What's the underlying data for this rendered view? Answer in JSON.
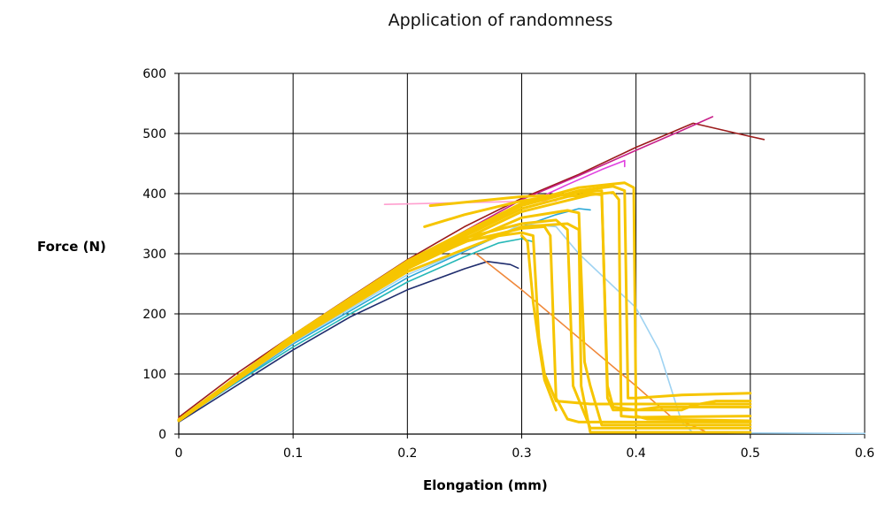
{
  "chart_data": {
    "type": "line",
    "title": "Application of randomness",
    "xlabel": "Elongation (mm)",
    "ylabel": "Force (N)",
    "xlim": [
      0,
      0.6
    ],
    "ylim": [
      0,
      600
    ],
    "x_ticks": [
      "0",
      "0.1",
      "0.2",
      "0.3",
      "0.4",
      "0.5",
      "0.6"
    ],
    "y_ticks": [
      "0",
      "100",
      "200",
      "300",
      "400",
      "500",
      "600"
    ],
    "grid": true,
    "legend": "none",
    "series": [
      {
        "color": "#9b1b1b",
        "points": [
          [
            0,
            28
          ],
          [
            0.05,
            100
          ],
          [
            0.1,
            165
          ],
          [
            0.15,
            228
          ],
          [
            0.2,
            290
          ],
          [
            0.25,
            345
          ],
          [
            0.3,
            392
          ],
          [
            0.35,
            432
          ],
          [
            0.4,
            477
          ],
          [
            0.45,
            517
          ],
          [
            0.5,
            495
          ],
          [
            0.512,
            490
          ]
        ]
      },
      {
        "color": "#c8208a",
        "points": [
          [
            0,
            25
          ],
          [
            0.1,
            160
          ],
          [
            0.2,
            285
          ],
          [
            0.3,
            390
          ],
          [
            0.35,
            430
          ],
          [
            0.4,
            472
          ],
          [
            0.44,
            505
          ],
          [
            0.467,
            528
          ]
        ]
      },
      {
        "color": "#e040e0",
        "points": [
          [
            0,
            22
          ],
          [
            0.1,
            155
          ],
          [
            0.2,
            278
          ],
          [
            0.3,
            380
          ],
          [
            0.34,
            415
          ],
          [
            0.37,
            440
          ],
          [
            0.39,
            455
          ],
          [
            0.39,
            445
          ]
        ]
      },
      {
        "color": "#ff9fcf",
        "points": [
          [
            0.18,
            382
          ],
          [
            0.25,
            385
          ],
          [
            0.3,
            387
          ],
          [
            0.33,
            388
          ]
        ]
      },
      {
        "color": "#1f2d6e",
        "points": [
          [
            0,
            20
          ],
          [
            0.05,
            80
          ],
          [
            0.1,
            140
          ],
          [
            0.15,
            195
          ],
          [
            0.2,
            240
          ],
          [
            0.25,
            275
          ],
          [
            0.27,
            287
          ],
          [
            0.29,
            282
          ],
          [
            0.297,
            276
          ]
        ]
      },
      {
        "color": "#25b7b7",
        "points": [
          [
            0,
            22
          ],
          [
            0.05,
            85
          ],
          [
            0.1,
            145
          ],
          [
            0.15,
            200
          ],
          [
            0.2,
            253
          ],
          [
            0.25,
            295
          ],
          [
            0.28,
            318
          ],
          [
            0.3,
            325
          ],
          [
            0.31,
            320
          ]
        ]
      },
      {
        "color": "#2aa7d6",
        "points": [
          [
            0,
            22
          ],
          [
            0.1,
            150
          ],
          [
            0.2,
            260
          ],
          [
            0.28,
            330
          ],
          [
            0.3,
            345
          ],
          [
            0.33,
            365
          ],
          [
            0.35,
            375
          ],
          [
            0.36,
            373
          ]
        ]
      },
      {
        "color": "#9fd3f2",
        "points": [
          [
            0,
            23
          ],
          [
            0.1,
            152
          ],
          [
            0.2,
            265
          ],
          [
            0.28,
            330
          ],
          [
            0.3,
            350
          ],
          [
            0.33,
            345
          ],
          [
            0.35,
            300
          ],
          [
            0.4,
            210
          ],
          [
            0.42,
            140
          ],
          [
            0.44,
            20
          ],
          [
            0.45,
            2
          ],
          [
            0.6,
            1
          ]
        ]
      },
      {
        "color": "#f0883a",
        "points": [
          [
            0.26,
            300
          ],
          [
            0.3,
            240
          ],
          [
            0.35,
            160
          ],
          [
            0.4,
            80
          ],
          [
            0.43,
            30
          ],
          [
            0.46,
            5
          ]
        ]
      },
      {
        "color": "#f6c500",
        "points": [
          [
            0,
            22
          ],
          [
            0.1,
            158
          ],
          [
            0.2,
            275
          ],
          [
            0.25,
            320
          ],
          [
            0.3,
            342
          ],
          [
            0.32,
            345
          ],
          [
            0.325,
            330
          ],
          [
            0.33,
            60
          ],
          [
            0.34,
            25
          ],
          [
            0.35,
            20
          ],
          [
            0.5,
            20
          ]
        ]
      },
      {
        "color": "#f6c500",
        "points": [
          [
            0,
            23
          ],
          [
            0.1,
            160
          ],
          [
            0.2,
            280
          ],
          [
            0.25,
            326
          ],
          [
            0.3,
            350
          ],
          [
            0.33,
            356
          ],
          [
            0.34,
            340
          ],
          [
            0.345,
            80
          ],
          [
            0.36,
            10
          ],
          [
            0.5,
            10
          ]
        ]
      },
      {
        "color": "#f6c500",
        "points": [
          [
            0,
            24
          ],
          [
            0.1,
            162
          ],
          [
            0.2,
            284
          ],
          [
            0.3,
            375
          ],
          [
            0.34,
            395
          ],
          [
            0.36,
            400
          ],
          [
            0.37,
            398
          ],
          [
            0.375,
            80
          ],
          [
            0.38,
            45
          ],
          [
            0.4,
            40
          ],
          [
            0.42,
            45
          ],
          [
            0.5,
            45
          ]
        ]
      },
      {
        "color": "#f6c500",
        "points": [
          [
            0,
            24
          ],
          [
            0.1,
            163
          ],
          [
            0.2,
            286
          ],
          [
            0.3,
            380
          ],
          [
            0.35,
            405
          ],
          [
            0.38,
            412
          ],
          [
            0.39,
            405
          ],
          [
            0.393,
            60
          ],
          [
            0.4,
            60
          ],
          [
            0.44,
            65
          ],
          [
            0.5,
            68
          ]
        ]
      },
      {
        "color": "#f6c500",
        "points": [
          [
            0,
            24
          ],
          [
            0.1,
            164
          ],
          [
            0.2,
            288
          ],
          [
            0.3,
            384
          ],
          [
            0.35,
            410
          ],
          [
            0.39,
            418
          ],
          [
            0.398,
            410
          ],
          [
            0.4,
            30
          ],
          [
            0.41,
            25
          ],
          [
            0.5,
            22
          ]
        ]
      },
      {
        "color": "#f6c500",
        "points": [
          [
            0.215,
            345
          ],
          [
            0.25,
            365
          ],
          [
            0.3,
            388
          ],
          [
            0.35,
            402
          ],
          [
            0.37,
            405
          ],
          [
            0.375,
            60
          ],
          [
            0.38,
            40
          ],
          [
            0.44,
            40
          ],
          [
            0.45,
            48
          ],
          [
            0.47,
            55
          ],
          [
            0.5,
            55
          ]
        ]
      },
      {
        "color": "#f6c500",
        "points": [
          [
            0,
            23
          ],
          [
            0.1,
            157
          ],
          [
            0.2,
            276
          ],
          [
            0.25,
            322
          ],
          [
            0.3,
            335
          ],
          [
            0.31,
            330
          ],
          [
            0.315,
            160
          ],
          [
            0.32,
            100
          ],
          [
            0.33,
            55
          ],
          [
            0.36,
            50
          ],
          [
            0.5,
            50
          ]
        ]
      },
      {
        "color": "#f6c500",
        "points": [
          [
            0,
            23
          ],
          [
            0.1,
            158
          ],
          [
            0.2,
            278
          ],
          [
            0.3,
            360
          ],
          [
            0.34,
            372
          ],
          [
            0.35,
            368
          ],
          [
            0.355,
            120
          ],
          [
            0.36,
            80
          ],
          [
            0.37,
            15
          ],
          [
            0.5,
            15
          ]
        ]
      },
      {
        "color": "#f6c500",
        "points": [
          [
            0,
            22
          ],
          [
            0.1,
            155
          ],
          [
            0.2,
            270
          ],
          [
            0.3,
            345
          ],
          [
            0.34,
            350
          ],
          [
            0.35,
            340
          ],
          [
            0.352,
            80
          ],
          [
            0.36,
            3
          ],
          [
            0.5,
            3
          ]
        ]
      },
      {
        "color": "#f6c500",
        "points": [
          [
            0,
            23
          ],
          [
            0.1,
            159
          ],
          [
            0.2,
            279
          ],
          [
            0.3,
            370
          ],
          [
            0.36,
            398
          ],
          [
            0.38,
            402
          ],
          [
            0.385,
            390
          ],
          [
            0.387,
            30
          ],
          [
            0.4,
            28
          ],
          [
            0.5,
            30
          ]
        ]
      },
      {
        "color": "#f6c500",
        "points": [
          [
            0.22,
            380
          ],
          [
            0.3,
            395
          ],
          [
            0.34,
            398
          ],
          [
            0.35,
            395
          ]
        ]
      },
      {
        "color": "#f6c500",
        "points": [
          [
            0.3,
            330
          ],
          [
            0.305,
            320
          ],
          [
            0.31,
            220
          ],
          [
            0.315,
            150
          ],
          [
            0.32,
            90
          ],
          [
            0.33,
            40
          ]
        ]
      }
    ]
  }
}
